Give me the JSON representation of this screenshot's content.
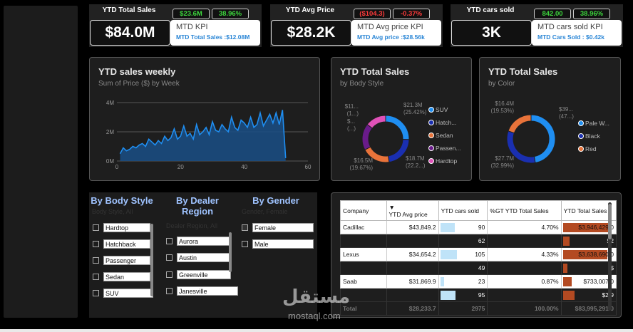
{
  "kpis": [
    {
      "title": "YTD Total Sales",
      "value": "$84.0M",
      "chip_a": "$23.6M",
      "chip_a_color": "green",
      "chip_b": "38.96%",
      "chip_b_color": "green",
      "tip_title": "MTD KPI",
      "tip_sub": "MTD Total Sales :$12.08M"
    },
    {
      "title": "YTD Avg Price",
      "value": "$28.2K",
      "chip_a": "($104.3)",
      "chip_a_color": "red",
      "chip_b": "-0.37%",
      "chip_b_color": "red",
      "tip_title": "MTD Avg price KPI",
      "tip_sub": "MTD Avg price :$28.56k"
    },
    {
      "title": "YTD cars sold",
      "value": "3K",
      "chip_a": "842.00",
      "chip_a_color": "green",
      "chip_b": "38.96%",
      "chip_b_color": "green",
      "tip_title": "MTD cars sold KPI",
      "tip_sub": "MTD Cars Sold : $0.42k"
    }
  ],
  "chart_data": [
    {
      "type": "area",
      "title": "YTD sales weekly",
      "subtitle": "Sum of Price ($) by Week",
      "xlim": [
        0,
        60
      ],
      "ylim": [
        0,
        4000000
      ],
      "x_ticks": [
        "0",
        "20",
        "40",
        "60"
      ],
      "y_ticks": [
        "0M",
        "2M",
        "4M"
      ],
      "color": "#1f8ef1",
      "x": [
        1,
        2,
        3,
        4,
        5,
        6,
        7,
        8,
        9,
        10,
        11,
        12,
        13,
        14,
        15,
        16,
        17,
        18,
        19,
        20,
        21,
        22,
        23,
        24,
        25,
        26,
        27,
        28,
        29,
        30,
        31,
        32,
        33,
        34,
        35,
        36,
        37,
        38,
        39,
        40,
        41,
        42,
        43,
        44,
        45,
        46,
        47,
        48,
        49,
        50,
        51,
        52,
        53
      ],
      "values": [
        500000,
        900000,
        700000,
        800000,
        1000000,
        900000,
        1100000,
        1200000,
        1000000,
        1500000,
        1300000,
        1100000,
        1400000,
        1200000,
        1700000,
        1400000,
        1600000,
        2200000,
        1500000,
        1700000,
        2400000,
        1700000,
        1900000,
        1500000,
        2500000,
        1800000,
        2000000,
        2300000,
        1800000,
        2700000,
        2100000,
        2000000,
        2500000,
        2200000,
        2000000,
        3000000,
        2300000,
        2100000,
        2800000,
        2600000,
        2300000,
        3000000,
        2300000,
        2500000,
        3300000,
        2400000,
        2800000,
        3200000,
        2600000,
        3300000,
        2500000,
        3500000,
        200000
      ]
    },
    {
      "type": "pie",
      "title": "YTD Total Sales",
      "subtitle": "by Body Style",
      "slices": [
        {
          "label": "SUV",
          "value": 25.42,
          "color": "#1f8ef1",
          "text": "$21.3M (25.42%)"
        },
        {
          "label": "Hatchback",
          "value": 22.2,
          "color": "#1a2fb0",
          "text": "$18.7M (22.2...)"
        },
        {
          "label": "Sedan",
          "value": 19.67,
          "color": "#e8733a",
          "text": "$16.5M (19.67%)"
        },
        {
          "label": "Passenger",
          "value": 18.4,
          "color": "#6a1b8a",
          "text": "$..."
        },
        {
          "label": "Hardtop",
          "value": 14.31,
          "color": "#e051b8",
          "text": "$11... (1...)"
        }
      ]
    },
    {
      "type": "pie",
      "title": "YTD Total Sales",
      "subtitle": "by Color",
      "slices": [
        {
          "label": "Pale White",
          "value": 47.0,
          "color": "#1f8ef1",
          "text": "$39... (47...)"
        },
        {
          "label": "Black",
          "value": 32.99,
          "color": "#1a2fb0",
          "text": "$27.7M (32.99%)"
        },
        {
          "label": "Red",
          "value": 19.53,
          "color": "#e8733a",
          "text": "$16.4M (19.53%)"
        }
      ]
    }
  ],
  "legend_body": [
    "SUV",
    "Hatch...",
    "Sedan",
    "Passen...",
    "Hardtop"
  ],
  "legend_color": [
    "Pale W...",
    "Black",
    "Red"
  ],
  "pie1_labels": {
    "l1": "$11... (1...)",
    "l2": "$... (...)",
    "l3": "$16.5M (19.67%)",
    "r1": "$21.3M (25.42%)",
    "r2": "$18.7M (22.2...)"
  },
  "pie2_labels": {
    "l1": "$16.4M (19.53%)",
    "l2": "$27.7M (32.99%)",
    "r1": "$39... (47...)"
  },
  "slicers": {
    "body_style": {
      "title": "By Body Style",
      "ghost": "Body Style, All",
      "items": [
        "Hardtop",
        "Hatchback",
        "Passenger",
        "Sedan",
        "SUV"
      ]
    },
    "dealer_region": {
      "title": "By Dealer Region",
      "ghost": "Dealer Region, All",
      "items": [
        "Aurora",
        "Austin",
        "Greenville",
        "Janesville"
      ]
    },
    "gender": {
      "title": "By Gender",
      "ghost": "Gender, Female",
      "items": [
        "Female",
        "Male"
      ]
    }
  },
  "table": {
    "headers": [
      "Company",
      "YTD Avg price",
      "YTD cars sold",
      "%GT YTD Total Sales",
      "YTD Total Sales"
    ],
    "rows": [
      {
        "company": "Cadillac",
        "avg": "$43,849.2",
        "sold": "90",
        "sold_pct": 30,
        "gt": "4.70%",
        "total": "$3,946,429.0",
        "total_pct": 88,
        "dark": false
      },
      {
        "company": "",
        "avg": "",
        "sold": "62",
        "sold_pct": 0,
        "gt": "",
        "total": "$2",
        "total_pct": 12,
        "dark": true
      },
      {
        "company": "Lexus",
        "avg": "$34,654.2",
        "sold": "105",
        "sold_pct": 35,
        "gt": "4.33%",
        "total": "$3,638,690.0",
        "total_pct": 82,
        "dark": false
      },
      {
        "company": "",
        "avg": "",
        "sold": "49",
        "sold_pct": 0,
        "gt": "",
        "total": "$",
        "total_pct": 8,
        "dark": true
      },
      {
        "company": "Saab",
        "avg": "$31,869.9",
        "sold": "23",
        "sold_pct": 8,
        "gt": "0.87%",
        "total": "$733,007.0",
        "total_pct": 16,
        "dark": false
      },
      {
        "company": "",
        "avg": "",
        "sold": "95",
        "sold_pct": 32,
        "gt": "",
        "total": "$2,9",
        "total_pct": 22,
        "dark": true
      }
    ],
    "total": {
      "label": "Total",
      "avg": "$28,233.7",
      "sold": "2975",
      "gt": "100.00%",
      "total": "$83,995,291.0"
    }
  },
  "watermark": {
    "arabic": "مستقل",
    "latin": "mostaql.com"
  }
}
